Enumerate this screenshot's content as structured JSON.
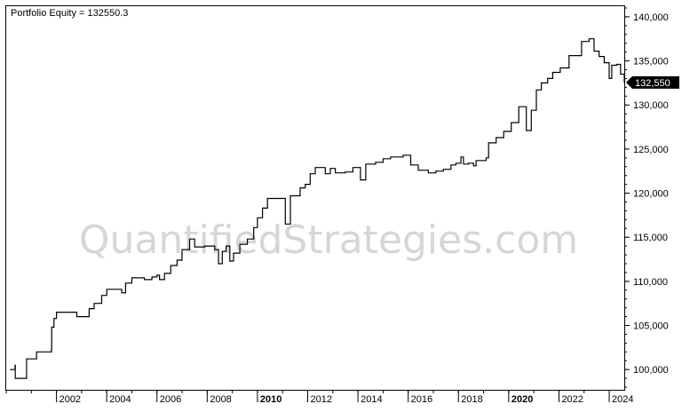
{
  "title": "Portfolio Equity = 132550.3",
  "watermark": "QuantifiedStrategies.com",
  "last_value_label": "132,550",
  "chart_data": {
    "type": "line",
    "title": "Portfolio Equity = 132550.3",
    "xlabel": "",
    "ylabel": "",
    "xlim": [
      2000.0,
      2024.6
    ],
    "ylim": [
      97700,
      141200
    ],
    "x_ticks": [
      {
        "x": 2002,
        "label": "2002",
        "bold": false
      },
      {
        "x": 2004,
        "label": "2004",
        "bold": false
      },
      {
        "x": 2006,
        "label": "2006",
        "bold": false
      },
      {
        "x": 2008,
        "label": "2008",
        "bold": false
      },
      {
        "x": 2010,
        "label": "2010",
        "bold": true
      },
      {
        "x": 2012,
        "label": "2012",
        "bold": false
      },
      {
        "x": 2014,
        "label": "2014",
        "bold": false
      },
      {
        "x": 2016,
        "label": "2016",
        "bold": false
      },
      {
        "x": 2018,
        "label": "2018",
        "bold": false
      },
      {
        "x": 2020,
        "label": "2020",
        "bold": true
      },
      {
        "x": 2022,
        "label": "2022",
        "bold": false
      },
      {
        "x": 2024,
        "label": "2024",
        "bold": false
      }
    ],
    "y_ticks": [
      {
        "y": 100000,
        "label": "100,000"
      },
      {
        "y": 105000,
        "label": "105,000"
      },
      {
        "y": 110000,
        "label": "110,000"
      },
      {
        "y": 115000,
        "label": "115,000"
      },
      {
        "y": 120000,
        "label": "120,000"
      },
      {
        "y": 125000,
        "label": "125,000"
      },
      {
        "y": 130000,
        "label": "130,000"
      },
      {
        "y": 135000,
        "label": "135,000"
      },
      {
        "y": 140000,
        "label": "140,000"
      }
    ],
    "grid": false,
    "line_color": "#000000",
    "series": [
      {
        "step": true,
        "points": [
          [
            2000.15,
            100000
          ],
          [
            2000.35,
            100500
          ],
          [
            2000.36,
            99000
          ],
          [
            2000.8,
            99000
          ],
          [
            2000.81,
            101200
          ],
          [
            2001.2,
            101200
          ],
          [
            2001.21,
            102000
          ],
          [
            2001.8,
            102200
          ],
          [
            2001.81,
            104800
          ],
          [
            2001.9,
            105800
          ],
          [
            2002.0,
            106500
          ],
          [
            2002.8,
            106500
          ],
          [
            2002.81,
            106000
          ],
          [
            2003.2,
            106000
          ],
          [
            2003.3,
            106900
          ],
          [
            2003.5,
            107500
          ],
          [
            2003.8,
            108400
          ],
          [
            2004.0,
            109100
          ],
          [
            2004.6,
            108700
          ],
          [
            2004.75,
            109800
          ],
          [
            2005.0,
            110400
          ],
          [
            2005.5,
            110200
          ],
          [
            2005.8,
            110500
          ],
          [
            2006.0,
            110700
          ],
          [
            2006.1,
            110200
          ],
          [
            2006.3,
            110900
          ],
          [
            2006.55,
            111800
          ],
          [
            2006.8,
            112400
          ],
          [
            2007.0,
            113600
          ],
          [
            2007.3,
            114800
          ],
          [
            2007.5,
            113900
          ],
          [
            2007.9,
            114000
          ],
          [
            2008.1,
            114000
          ],
          [
            2008.3,
            113600
          ],
          [
            2008.45,
            112000
          ],
          [
            2008.6,
            113400
          ],
          [
            2008.75,
            114000
          ],
          [
            2008.9,
            112300
          ],
          [
            2009.05,
            113200
          ],
          [
            2009.3,
            114200
          ],
          [
            2009.6,
            114800
          ],
          [
            2009.85,
            116100
          ],
          [
            2010.0,
            117200
          ],
          [
            2010.2,
            118300
          ],
          [
            2010.4,
            119400
          ],
          [
            2011.1,
            119400
          ],
          [
            2011.11,
            116500
          ],
          [
            2011.3,
            116500
          ],
          [
            2011.31,
            119700
          ],
          [
            2011.7,
            120600
          ],
          [
            2011.9,
            121000
          ],
          [
            2012.1,
            122200
          ],
          [
            2012.3,
            122900
          ],
          [
            2012.7,
            122200
          ],
          [
            2012.9,
            122800
          ],
          [
            2013.1,
            122300
          ],
          [
            2013.5,
            122400
          ],
          [
            2013.8,
            122900
          ],
          [
            2014.1,
            121500
          ],
          [
            2014.3,
            121500
          ],
          [
            2014.31,
            123300
          ],
          [
            2014.7,
            123500
          ],
          [
            2015.0,
            123900
          ],
          [
            2015.3,
            124100
          ],
          [
            2015.8,
            124300
          ],
          [
            2016.1,
            123200
          ],
          [
            2016.4,
            122600
          ],
          [
            2016.8,
            122300
          ],
          [
            2017.1,
            122500
          ],
          [
            2017.4,
            122700
          ],
          [
            2017.7,
            123200
          ],
          [
            2017.9,
            123400
          ],
          [
            2018.1,
            124100
          ],
          [
            2018.2,
            123300
          ],
          [
            2018.4,
            123400
          ],
          [
            2018.6,
            123100
          ],
          [
            2018.7,
            123700
          ],
          [
            2019.1,
            124000
          ],
          [
            2019.2,
            125700
          ],
          [
            2019.5,
            126300
          ],
          [
            2019.8,
            127000
          ],
          [
            2020.1,
            128000
          ],
          [
            2020.4,
            129800
          ],
          [
            2020.7,
            127100
          ],
          [
            2020.9,
            129400
          ],
          [
            2021.1,
            131700
          ],
          [
            2021.3,
            132500
          ],
          [
            2021.55,
            133000
          ],
          [
            2021.75,
            133700
          ],
          [
            2022.05,
            134200
          ],
          [
            2022.4,
            135600
          ],
          [
            2022.8,
            135600
          ],
          [
            2022.9,
            137200
          ],
          [
            2023.2,
            137500
          ],
          [
            2023.4,
            136100
          ],
          [
            2023.6,
            135500
          ],
          [
            2023.8,
            134800
          ],
          [
            2024.0,
            133000
          ],
          [
            2024.1,
            134500
          ],
          [
            2024.3,
            134600
          ],
          [
            2024.45,
            133500
          ],
          [
            2024.6,
            132550
          ]
        ]
      }
    ]
  }
}
